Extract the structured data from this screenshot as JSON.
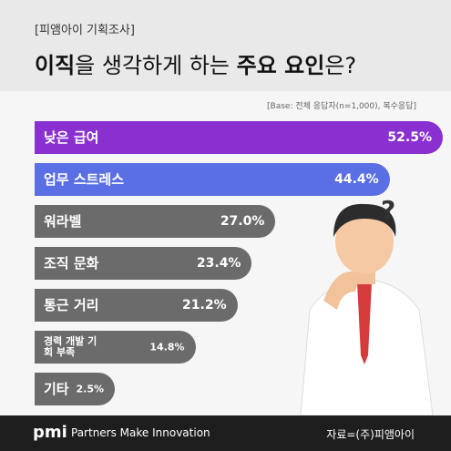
{
  "header": {
    "tag": "[피앰아이 기획조사]",
    "heading": [
      {
        "text": "이직",
        "bold": true
      },
      {
        "text": "을 생각하게 하는 ",
        "bold": false
      },
      {
        "text": "주요 요인",
        "bold": true
      },
      {
        "text": "은?",
        "bold": false
      }
    ]
  },
  "chart_data": {
    "type": "bar",
    "orientation": "horizontal",
    "note": "[Base: 전체 응답자(n=1,000), 복수응답]",
    "categories": [
      "낮은 급여",
      "업무 스트레스",
      "워라벨",
      "조직 문화",
      "통근 거리",
      "경력 개발 기회 부족",
      "기타"
    ],
    "values": [
      52.5,
      44.4,
      27.0,
      23.4,
      21.2,
      14.8,
      2.5
    ],
    "value_labels": [
      "52.5%",
      "44.4%",
      "27.0%",
      "23.4%",
      "21.2%",
      "14.8%",
      "2.5%"
    ],
    "colors": [
      "#8a2fd0",
      "#5a6fe3",
      "#6b6b6b",
      "#6b6b6b",
      "#6b6b6b",
      "#6b6b6b",
      "#6b6b6b"
    ]
  },
  "illustration": {
    "mark": "?"
  },
  "footer": {
    "logo": "pmi",
    "slogan": "Partners Make Innovation",
    "source": "자료=(주)피앰아이"
  }
}
